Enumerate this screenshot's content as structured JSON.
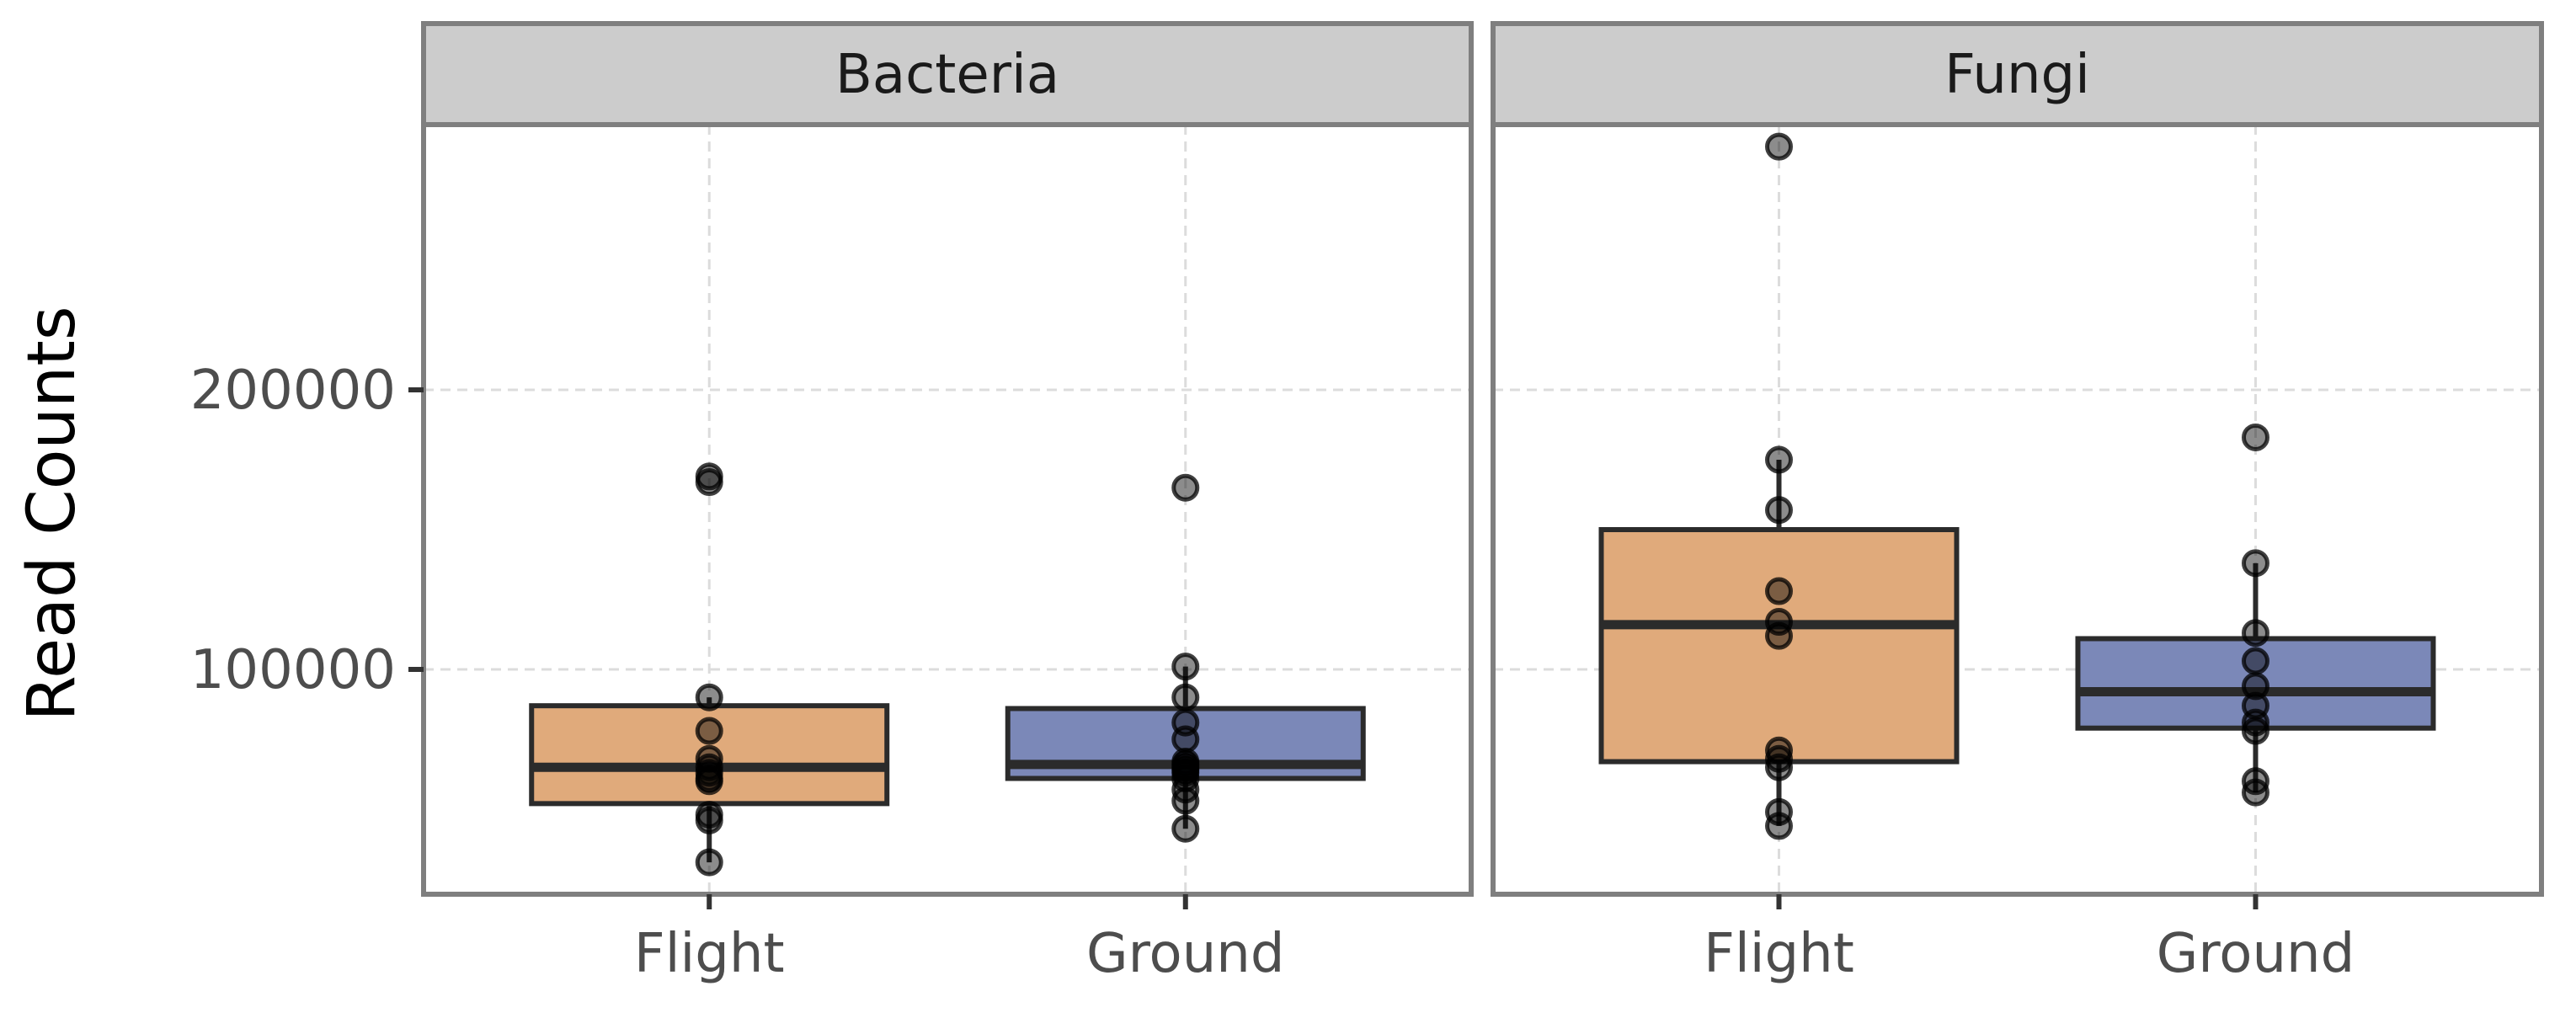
{
  "chart_data": {
    "type": "box",
    "ylabel": "Read Counts",
    "yticks": [
      100000,
      200000
    ],
    "ylim": [
      17000,
      300000
    ],
    "grid": true,
    "groups": [
      "Flight",
      "Ground"
    ],
    "colors": {
      "Flight": "#e0aa7b",
      "Ground": "#7b88b8"
    },
    "panels": [
      {
        "facet": "Bacteria",
        "boxes": [
          {
            "group": "Flight",
            "min": 31000,
            "q1": 52000,
            "median": 65000,
            "q3": 87000,
            "max": 90000,
            "points": [
              31000,
              46000,
              48000,
              60000,
              61000,
              63000,
              65000,
              68000,
              78000,
              90000,
              167000,
              169000
            ]
          },
          {
            "group": "Ground",
            "min": 43000,
            "q1": 61000,
            "median": 66000,
            "q3": 86000,
            "max": 101000,
            "points": [
              43000,
              53000,
              57000,
              61000,
              63000,
              64000,
              65000,
              66000,
              67000,
              75000,
              81000,
              90000,
              101000,
              165000
            ]
          }
        ]
      },
      {
        "facet": "Fungi",
        "boxes": [
          {
            "group": "Flight",
            "min": 44000,
            "q1": 67000,
            "median": 116000,
            "q3": 150000,
            "max": 175000,
            "points": [
              44000,
              49000,
              65000,
              68000,
              71000,
              112000,
              117000,
              128000,
              157000,
              175000,
              287000
            ]
          },
          {
            "group": "Ground",
            "min": 56000,
            "q1": 79000,
            "median": 92000,
            "q3": 111000,
            "max": 138000,
            "points": [
              56000,
              60000,
              78000,
              81000,
              87000,
              94000,
              103000,
              113000,
              138000,
              183000
            ]
          }
        ]
      }
    ]
  }
}
